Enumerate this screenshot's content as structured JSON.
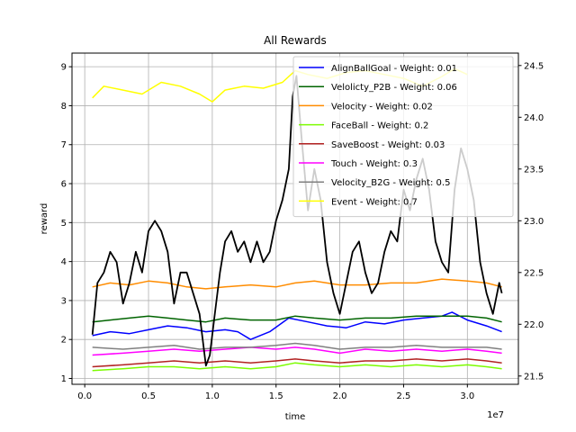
{
  "chart_data": {
    "type": "line",
    "title": "All Rewards",
    "xlabel": "time",
    "ylabel": "reward",
    "x_offset_label": "1e7",
    "xlim": [
      -0.1,
      3.4
    ],
    "ylim": [
      0.85,
      9.35
    ],
    "y2lim": [
      21.42,
      24.62
    ],
    "xticks": [
      0.0,
      0.5,
      1.0,
      1.5,
      2.0,
      2.5,
      3.0
    ],
    "xtick_labels": [
      "0.0",
      "0.5",
      "1.0",
      "1.5",
      "2.0",
      "2.5",
      "3.0"
    ],
    "yticks": [
      1,
      2,
      3,
      4,
      5,
      6,
      7,
      8,
      9
    ],
    "ytick_labels": [
      "1",
      "2",
      "3",
      "4",
      "5",
      "6",
      "7",
      "8",
      "9"
    ],
    "y2ticks": [
      21.5,
      22.0,
      22.5,
      23.0,
      23.5,
      24.0,
      24.5
    ],
    "y2tick_labels": [
      "21.5",
      "22.0",
      "22.5",
      "23.0",
      "23.5",
      "24.0",
      "24.5"
    ],
    "grid": true,
    "legend_position": "top-right",
    "series": [
      {
        "name": "AlignBallGoal - Weight: 0.01",
        "color": "#0000ff",
        "axis": "left",
        "x": [
          0.06,
          0.2,
          0.35,
          0.5,
          0.65,
          0.8,
          0.95,
          1.1,
          1.2,
          1.3,
          1.45,
          1.6,
          1.75,
          1.9,
          2.05,
          2.2,
          2.35,
          2.5,
          2.65,
          2.8,
          2.88,
          3.0,
          3.15,
          3.27
        ],
        "y": [
          2.1,
          2.2,
          2.15,
          2.25,
          2.35,
          2.3,
          2.2,
          2.25,
          2.2,
          2.0,
          2.2,
          2.55,
          2.45,
          2.35,
          2.3,
          2.45,
          2.4,
          2.5,
          2.55,
          2.6,
          2.7,
          2.5,
          2.35,
          2.2
        ]
      },
      {
        "name": "Velolicty_P2B - Weight: 0.06",
        "color": "#006400",
        "axis": "left",
        "x": [
          0.06,
          0.2,
          0.35,
          0.5,
          0.65,
          0.8,
          0.95,
          1.1,
          1.3,
          1.5,
          1.65,
          1.8,
          2.0,
          2.2,
          2.4,
          2.6,
          2.8,
          3.0,
          3.15,
          3.27
        ],
        "y": [
          2.45,
          2.5,
          2.55,
          2.6,
          2.55,
          2.5,
          2.45,
          2.55,
          2.5,
          2.5,
          2.6,
          2.55,
          2.5,
          2.55,
          2.55,
          2.6,
          2.6,
          2.6,
          2.55,
          2.45
        ]
      },
      {
        "name": "Velocity - Weight: 0.02",
        "color": "#ff8c00",
        "axis": "left",
        "x": [
          0.06,
          0.2,
          0.35,
          0.5,
          0.65,
          0.8,
          0.95,
          1.1,
          1.3,
          1.5,
          1.65,
          1.8,
          2.0,
          2.2,
          2.4,
          2.6,
          2.8,
          3.0,
          3.15,
          3.27
        ],
        "y": [
          3.35,
          3.45,
          3.4,
          3.5,
          3.45,
          3.35,
          3.3,
          3.35,
          3.4,
          3.35,
          3.45,
          3.5,
          3.4,
          3.4,
          3.45,
          3.45,
          3.55,
          3.5,
          3.45,
          3.35
        ]
      },
      {
        "name": "FaceBall - Weight: 0.2",
        "color": "#7cfc00",
        "axis": "left",
        "x": [
          0.06,
          0.3,
          0.5,
          0.7,
          0.9,
          1.1,
          1.3,
          1.5,
          1.65,
          1.8,
          2.0,
          2.2,
          2.4,
          2.6,
          2.8,
          3.0,
          3.15,
          3.27
        ],
        "y": [
          1.2,
          1.25,
          1.3,
          1.3,
          1.25,
          1.3,
          1.25,
          1.3,
          1.4,
          1.35,
          1.3,
          1.35,
          1.3,
          1.35,
          1.3,
          1.35,
          1.3,
          1.25
        ]
      },
      {
        "name": "SaveBoost - Weight: 0.03",
        "color": "#b22222",
        "axis": "left",
        "x": [
          0.06,
          0.3,
          0.5,
          0.7,
          0.9,
          1.1,
          1.3,
          1.5,
          1.65,
          1.8,
          2.0,
          2.2,
          2.4,
          2.6,
          2.8,
          3.0,
          3.15,
          3.27
        ],
        "y": [
          1.3,
          1.35,
          1.4,
          1.45,
          1.4,
          1.45,
          1.4,
          1.45,
          1.5,
          1.45,
          1.4,
          1.45,
          1.45,
          1.5,
          1.45,
          1.5,
          1.45,
          1.4
        ]
      },
      {
        "name": "Touch - Weight: 0.3",
        "color": "#ff00ff",
        "axis": "left",
        "x": [
          0.06,
          0.3,
          0.5,
          0.7,
          0.9,
          1.1,
          1.3,
          1.5,
          1.65,
          1.8,
          2.0,
          2.2,
          2.4,
          2.6,
          2.8,
          3.0,
          3.15,
          3.27
        ],
        "y": [
          1.6,
          1.65,
          1.7,
          1.75,
          1.7,
          1.75,
          1.8,
          1.75,
          1.8,
          1.75,
          1.65,
          1.75,
          1.7,
          1.75,
          1.7,
          1.75,
          1.7,
          1.65
        ]
      },
      {
        "name": "Velocity_B2G - Weight: 0.5",
        "color": "#808080",
        "axis": "left",
        "x": [
          0.06,
          0.3,
          0.5,
          0.7,
          0.9,
          1.1,
          1.3,
          1.5,
          1.65,
          1.8,
          2.0,
          2.2,
          2.4,
          2.6,
          2.8,
          3.0,
          3.15,
          3.27
        ],
        "y": [
          1.8,
          1.75,
          1.8,
          1.85,
          1.75,
          1.8,
          1.8,
          1.85,
          1.9,
          1.85,
          1.75,
          1.8,
          1.8,
          1.85,
          1.8,
          1.8,
          1.8,
          1.75
        ]
      },
      {
        "name": "Event - Weight: 0.7",
        "color": "#ffff00",
        "axis": "left",
        "x": [
          0.06,
          0.15,
          0.3,
          0.45,
          0.6,
          0.75,
          0.9,
          1.0,
          1.1,
          1.25,
          1.4,
          1.55,
          1.65,
          1.75,
          1.9,
          2.05,
          2.2,
          2.35,
          2.5,
          2.65,
          2.8,
          2.9,
          3.0
        ],
        "y": [
          8.2,
          8.5,
          8.4,
          8.3,
          8.6,
          8.5,
          8.3,
          8.1,
          8.4,
          8.5,
          8.45,
          8.6,
          8.9,
          8.8,
          8.7,
          8.85,
          8.9,
          8.8,
          8.7,
          8.5,
          8.75,
          8.95,
          8.8
        ]
      },
      {
        "name": "",
        "color": "#000000",
        "axis": "right",
        "x": [
          0.06,
          0.1,
          0.15,
          0.2,
          0.25,
          0.3,
          0.35,
          0.4,
          0.45,
          0.5,
          0.55,
          0.6,
          0.65,
          0.7,
          0.75,
          0.8,
          0.85,
          0.9,
          0.95,
          0.98,
          1.02,
          1.06,
          1.1,
          1.15,
          1.2,
          1.25,
          1.3,
          1.35,
          1.4,
          1.45,
          1.5,
          1.55,
          1.6,
          1.63,
          1.66,
          1.7,
          1.75,
          1.8,
          1.85,
          1.9,
          1.95,
          2.0,
          2.05,
          2.1,
          2.15,
          2.2,
          2.25,
          2.3,
          2.35,
          2.4,
          2.45,
          2.5,
          2.55,
          2.6,
          2.65,
          2.7,
          2.75,
          2.8,
          2.85,
          2.9,
          2.95,
          3.0,
          3.05,
          3.1,
          3.15,
          3.2,
          3.25,
          3.27
        ],
        "y": [
          21.9,
          22.4,
          22.5,
          22.7,
          22.6,
          22.2,
          22.4,
          22.7,
          22.5,
          22.9,
          23.0,
          22.9,
          22.7,
          22.2,
          22.5,
          22.5,
          22.3,
          22.1,
          21.6,
          21.7,
          22.1,
          22.5,
          22.8,
          22.9,
          22.7,
          22.8,
          22.6,
          22.8,
          22.6,
          22.7,
          23.0,
          23.2,
          23.5,
          24.2,
          24.4,
          23.8,
          23.1,
          23.5,
          23.2,
          22.6,
          22.3,
          22.1,
          22.4,
          22.7,
          22.8,
          22.5,
          22.3,
          22.4,
          22.7,
          22.9,
          22.8,
          23.3,
          23.1,
          23.4,
          23.6,
          23.3,
          22.8,
          22.6,
          22.5,
          23.3,
          23.7,
          23.5,
          23.2,
          22.6,
          22.3,
          22.1,
          22.4,
          22.3
        ]
      }
    ]
  }
}
